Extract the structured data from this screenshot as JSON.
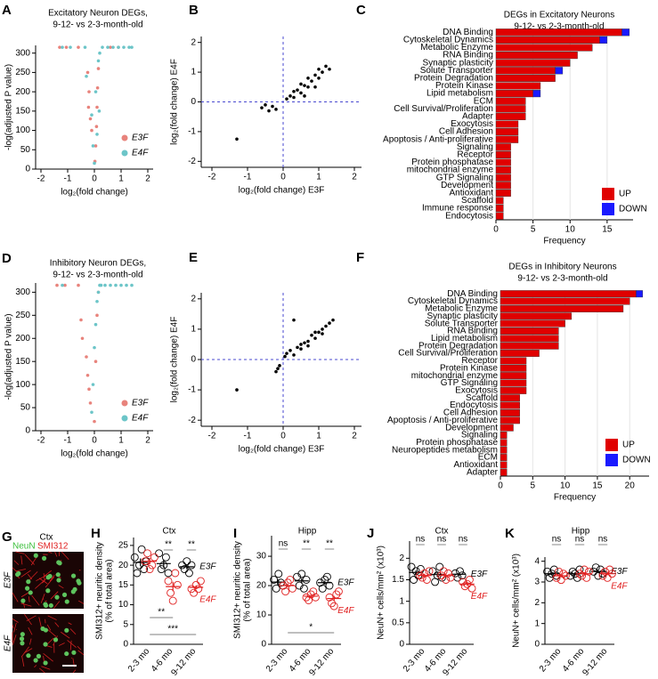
{
  "chart_data": [
    {
      "type": "scatter",
      "panel": "A",
      "title": "Excitatory Neuron DEGs,",
      "subtitle": "9-12- vs 2-3-month-old",
      "xlabel": "log₂(fold change)",
      "ylabel": "-log(adjusted P value)",
      "xlim": [
        -2.2,
        2.2
      ],
      "xticks": [
        -2,
        -1,
        0,
        1,
        2
      ],
      "ylim": [
        0,
        320
      ],
      "yticks": [
        0,
        50,
        100,
        150,
        200,
        250,
        300
      ],
      "series": [
        {
          "name": "E3F",
          "color": "#e8837c",
          "x": [
            -1.3,
            -1.05,
            -0.6,
            -0.25,
            -0.2,
            -0.22,
            -0.15,
            -0.1,
            0.02,
            0.05,
            0.08,
            0.1,
            0.12,
            0.15,
            0.6,
            0.9
          ],
          "values": [
            315,
            315,
            315,
            250,
            200,
            160,
            130,
            100,
            20,
            60,
            110,
            160,
            210,
            260,
            315,
            315
          ]
        },
        {
          "name": "E4F",
          "color": "#6cc5c8",
          "x": [
            -1.2,
            -0.9,
            -0.35,
            -0.3,
            -0.1,
            -0.05,
            0.0,
            0.05,
            0.1,
            0.15,
            0.18,
            0.2,
            0.3,
            0.5,
            0.7,
            0.9,
            1.1,
            1.3,
            1.4
          ],
          "values": [
            315,
            315,
            315,
            240,
            140,
            60,
            15,
            200,
            90,
            280,
            150,
            300,
            315,
            315,
            315,
            315,
            315,
            315,
            315
          ]
        }
      ]
    },
    {
      "type": "scatter",
      "panel": "B",
      "xlabel": "log₂(fold change) E3F",
      "ylabel": "log₂(fold change) E4F",
      "xlim": [
        -2.3,
        2.2
      ],
      "xticks": [
        -2,
        -1,
        0,
        1,
        2
      ],
      "ylim": [
        -2.2,
        2.2
      ],
      "yticks": [
        -2,
        -1,
        0,
        1,
        2
      ],
      "hline": 0,
      "vline": 0,
      "series": [
        {
          "color": "#000000",
          "x": [
            -1.3,
            -0.6,
            -0.5,
            -0.4,
            -0.3,
            -0.2,
            0.1,
            0.2,
            0.3,
            0.3,
            0.4,
            0.5,
            0.5,
            0.6,
            0.7,
            0.7,
            0.8,
            0.9,
            1.0,
            1.0,
            1.1,
            1.2,
            1.3,
            0.6,
            0.9
          ],
          "values": [
            -1.25,
            -0.2,
            -0.1,
            -0.3,
            -0.15,
            -0.25,
            0.1,
            0.2,
            0.15,
            0.35,
            0.4,
            0.3,
            0.6,
            0.55,
            0.5,
            0.8,
            0.7,
            0.9,
            0.8,
            1.1,
            1.0,
            1.2,
            1.1,
            0.2,
            0.5
          ]
        }
      ]
    },
    {
      "type": "hbar",
      "panel": "C",
      "title": "DEGs in Excitatory Neurons",
      "subtitle": "9-12- vs 2-3-month-old",
      "xlabel": "Frequency",
      "xlim": [
        0,
        18.5
      ],
      "xticks": [
        0,
        5,
        10,
        15
      ],
      "grid": true,
      "categories": [
        "DNA Binding",
        "Cytoskeletal Dynamics",
        "Metabolic Enzyme",
        "RNA Binding",
        "Synaptic plasticity",
        "Solute Transporter",
        "Protein Degradation",
        "Protein Kinase",
        "Lipid metabolism",
        "ECM",
        "Cell Survival/Proliferation",
        "Adapter",
        "Exocytosis",
        "Cell Adhesion",
        "Apoptosis / Anti-proliferative",
        "Signaling",
        "Receptor",
        "Protein phosphatase",
        "mitochondrial enzyme",
        "GTP Signaling",
        "Development",
        "Antioxidant",
        "Scaffold",
        "Immune response",
        "Endocytosis"
      ],
      "series": [
        {
          "name": "UP",
          "color": "#e00000",
          "values": [
            17,
            14,
            13,
            11,
            10,
            8,
            8,
            6,
            5,
            4,
            4,
            4,
            3,
            3,
            3,
            2,
            2,
            2,
            2,
            2,
            2,
            2,
            1,
            1,
            1
          ]
        },
        {
          "name": "DOWN",
          "color": "#1a1aff",
          "values": [
            1,
            1,
            0,
            0,
            0,
            1,
            0,
            0,
            1,
            0,
            0,
            0,
            0,
            0,
            0,
            0,
            0,
            0,
            0,
            0,
            0,
            0,
            0,
            0,
            0
          ]
        }
      ]
    },
    {
      "type": "scatter",
      "panel": "D",
      "title": "Inhibitory Neuron DEGs,",
      "subtitle": "9-12- vs 2-3-month-old",
      "xlabel": "log₂(fold change)",
      "ylabel": "-log(adjusted P value)",
      "xlim": [
        -2.2,
        2.2
      ],
      "xticks": [
        -2,
        -1,
        0,
        1,
        2
      ],
      "ylim": [
        0,
        320
      ],
      "yticks": [
        0,
        50,
        100,
        150,
        200,
        250,
        300
      ],
      "series": [
        {
          "name": "E3F",
          "color": "#e8837c",
          "x": [
            -1.4,
            -1.1,
            -0.6,
            -0.5,
            -0.45,
            -0.3,
            -0.25,
            -0.2,
            -0.15,
            0.0,
            0.05,
            0.1,
            0.15
          ],
          "values": [
            315,
            315,
            315,
            240,
            200,
            160,
            120,
            90,
            60,
            20,
            150,
            250,
            300
          ]
        },
        {
          "name": "E4F",
          "color": "#6cc5c8",
          "x": [
            -1.2,
            -0.1,
            -0.05,
            0.0,
            0.05,
            0.1,
            0.15,
            0.2,
            0.25,
            0.4,
            0.6,
            0.8,
            1.0,
            1.2,
            1.4
          ],
          "values": [
            315,
            40,
            100,
            180,
            230,
            280,
            300,
            315,
            315,
            315,
            315,
            315,
            315,
            315,
            315
          ]
        }
      ]
    },
    {
      "type": "scatter",
      "panel": "E",
      "xlabel": "log₂(fold change) E3F",
      "ylabel": "log₂(fold change) E4F",
      "xlim": [
        -2.3,
        2.2
      ],
      "xticks": [
        -2,
        -1,
        0,
        1,
        2
      ],
      "ylim": [
        -2.2,
        2.2
      ],
      "yticks": [
        -2,
        -1,
        0,
        1,
        2
      ],
      "hline": 0,
      "vline": 0,
      "series": [
        {
          "color": "#000000",
          "x": [
            -1.3,
            -0.2,
            -0.15,
            -0.1,
            0.05,
            0.1,
            0.2,
            0.3,
            0.4,
            0.5,
            0.6,
            0.7,
            0.8,
            0.9,
            1.0,
            1.1,
            1.2,
            1.3,
            1.4,
            0.3,
            0.5,
            0.7,
            0.9,
            1.1
          ],
          "values": [
            -1.0,
            -0.4,
            -0.3,
            -0.2,
            0.1,
            0.2,
            0.3,
            1.3,
            0.4,
            0.5,
            0.55,
            0.6,
            0.8,
            0.9,
            0.9,
            1.0,
            1.1,
            1.2,
            1.3,
            0.15,
            0.35,
            0.45,
            0.7,
            0.85
          ]
        }
      ]
    },
    {
      "type": "hbar",
      "panel": "F",
      "title": "DEGs in Inhibitory Neurons",
      "subtitle": "9-12- vs 2-3-month-old",
      "xlabel": "Frequency",
      "xlim": [
        0,
        23
      ],
      "xticks": [
        0,
        5,
        10,
        15,
        20
      ],
      "grid": true,
      "categories": [
        "DNA Binding",
        "Cytoskeletal Dynamics",
        "Metabolic Enzyme",
        "Synaptic plasticity",
        "Solute Transporter",
        "RNA Binding",
        "Lipid metabolism",
        "Protein Degradation",
        "Cell Survival/Proliferation",
        "Receptor",
        "Protein Kinase",
        "mitochondrial enzyme",
        "GTP Signaling",
        "Exocytosis",
        "Scaffold",
        "Endocytosis",
        "Cell Adhesion",
        "Apoptosis / Anti-proliferative",
        "Development",
        "Signaling",
        "Protein phosphatase",
        "Neuropeptides metabolism",
        "ECM",
        "Antioxidant",
        "Adapter"
      ],
      "series": [
        {
          "name": "UP",
          "color": "#e00000",
          "values": [
            21,
            20,
            19,
            11,
            10,
            9,
            9,
            9,
            6,
            4,
            4,
            4,
            4,
            4,
            3,
            3,
            3,
            3,
            2,
            1,
            1,
            1,
            1,
            1,
            1
          ]
        },
        {
          "name": "DOWN",
          "color": "#1a1aff",
          "values": [
            1,
            0,
            0,
            0,
            0,
            0,
            0,
            0,
            0,
            0,
            0,
            0,
            0,
            0,
            0,
            0,
            0,
            0,
            0,
            0,
            0,
            0,
            0,
            0,
            0
          ]
        }
      ]
    },
    {
      "type": "dotplot",
      "panel": "H",
      "title": "Ctx",
      "ylabel": "SMI312+ neuritic density",
      "ylabel2": "(% of total area)",
      "ylim": [
        0,
        27
      ],
      "yticks": [
        0,
        5,
        10,
        15,
        20,
        25
      ],
      "categories": [
        "2-3 mo",
        "4-6 mo",
        "9-12 mo"
      ],
      "annotations": [
        "**",
        "**",
        "**",
        "***"
      ],
      "series": [
        {
          "name": "E3F",
          "color": "#000000",
          "points": [
            [
              22,
              18,
              20,
              24,
              19,
              21
            ],
            [
              23,
              19,
              20,
              22,
              18
            ],
            [
              20,
              19,
              21,
              18,
              20
            ]
          ],
          "values": [
            20.7,
            20.4,
            19.6
          ],
          "errors": [
            1,
            1,
            0.6
          ]
        },
        {
          "name": "E4F",
          "color": "#e02020",
          "points": [
            [
              21,
              23,
              19,
              20,
              22
            ],
            [
              16,
              13,
              11,
              18,
              15
            ],
            [
              14,
              13,
              15,
              14,
              16
            ]
          ],
          "values": [
            21,
            14.6,
            14.4
          ],
          "errors": [
            0.8,
            1.2,
            0.5
          ]
        }
      ]
    },
    {
      "type": "dotplot",
      "panel": "I",
      "title": "Hipp",
      "ylabel": "SMI312+ neuritic density",
      "ylabel2": "(% of total area)",
      "ylim": [
        0,
        37
      ],
      "yticks": [
        0,
        10,
        20,
        30
      ],
      "categories": [
        "2-3 mo",
        "4-6 mo",
        "9-12 mo"
      ],
      "annotations": [
        "ns",
        "**",
        "**",
        "*"
      ],
      "series": [
        {
          "name": "E3F",
          "color": "#000000",
          "points": [
            [
              22,
              19,
              24,
              21,
              20
            ],
            [
              23,
              20,
              24,
              19,
              22
            ],
            [
              21,
              19,
              22,
              23,
              20
            ]
          ],
          "values": [
            21.2,
            21.6,
            21
          ],
          "errors": [
            0.9,
            0.9,
            0.7
          ]
        },
        {
          "name": "E4F",
          "color": "#e02020",
          "points": [
            [
              20,
              18,
              21,
              22,
              19
            ],
            [
              16,
              15,
              17,
              18,
              16
            ],
            [
              16,
              14,
              13,
              17,
              18
            ]
          ],
          "values": [
            20,
            16.4,
            15.6
          ],
          "errors": [
            0.7,
            0.5,
            0.9
          ]
        }
      ]
    },
    {
      "type": "dotplot",
      "panel": "J",
      "title": "Ctx",
      "ylabel": "NeuN+ cells/mm² (x10³)",
      "ylim": [
        0,
        2.4
      ],
      "yticks": [
        0,
        0.5,
        1,
        1.5,
        2
      ],
      "categories": [
        "2-3 mo",
        "4-6 mo",
        "9-12 mo"
      ],
      "annotations": [
        "ns",
        "ns",
        "ns"
      ],
      "series": [
        {
          "name": "E3F",
          "color": "#000000",
          "points": [
            [
              1.8,
              1.5,
              1.7,
              1.6,
              1.75
            ],
            [
              1.7,
              1.45,
              1.6,
              1.8,
              1.55
            ],
            [
              1.65,
              1.55,
              1.7,
              1.6
            ]
          ],
          "values": [
            1.67,
            1.62,
            1.63
          ],
          "errors": [
            0.05,
            0.06,
            0.03
          ]
        },
        {
          "name": "E4F",
          "color": "#e02020",
          "points": [
            [
              1.6,
              1.55,
              1.65,
              1.5,
              1.7
            ],
            [
              1.6,
              1.7,
              1.5,
              1.65,
              1.55
            ],
            [
              1.45,
              1.35,
              1.4,
              1.5,
              1.3
            ]
          ],
          "values": [
            1.6,
            1.6,
            1.4
          ],
          "errors": [
            0.04,
            0.04,
            0.04
          ]
        }
      ]
    },
    {
      "type": "dotplot",
      "panel": "K",
      "title": "Hipp",
      "ylabel": "NeuN+ cells/mm² (x10³)",
      "ylim": [
        0,
        4.2
      ],
      "yticks": [
        0,
        1,
        2,
        3,
        4
      ],
      "categories": [
        "2-3 mo",
        "4-6 mo",
        "9-12 mo"
      ],
      "annotations": [
        "ns",
        "ns",
        "ns"
      ],
      "series": [
        {
          "name": "E3F",
          "color": "#000000",
          "points": [
            [
              3.5,
              3.2,
              3.4,
              3.6,
              3.3
            ],
            [
              3.3,
              3.5,
              3.4,
              3.2,
              3.6
            ],
            [
              3.5,
              3.7,
              3.3,
              3.6,
              3.4
            ]
          ],
          "values": [
            3.4,
            3.4,
            3.5
          ],
          "errors": [
            0.07,
            0.07,
            0.07
          ]
        },
        {
          "name": "E4F",
          "color": "#e02020",
          "points": [
            [
              3.2,
              3.5,
              3.1,
              3.4,
              3.3
            ],
            [
              3.4,
              3.3,
              3.6,
              3.2,
              3.5
            ],
            [
              3.3,
              3.5,
              3.2,
              3.6,
              3.4
            ]
          ],
          "values": [
            3.3,
            3.4,
            3.4
          ],
          "errors": [
            0.07,
            0.07,
            0.07
          ]
        }
      ]
    }
  ],
  "image_panel": {
    "panel": "G",
    "title": "Ctx",
    "stains": [
      "NeuN",
      "SMI312"
    ],
    "groups": [
      "E3F",
      "E4F"
    ]
  }
}
